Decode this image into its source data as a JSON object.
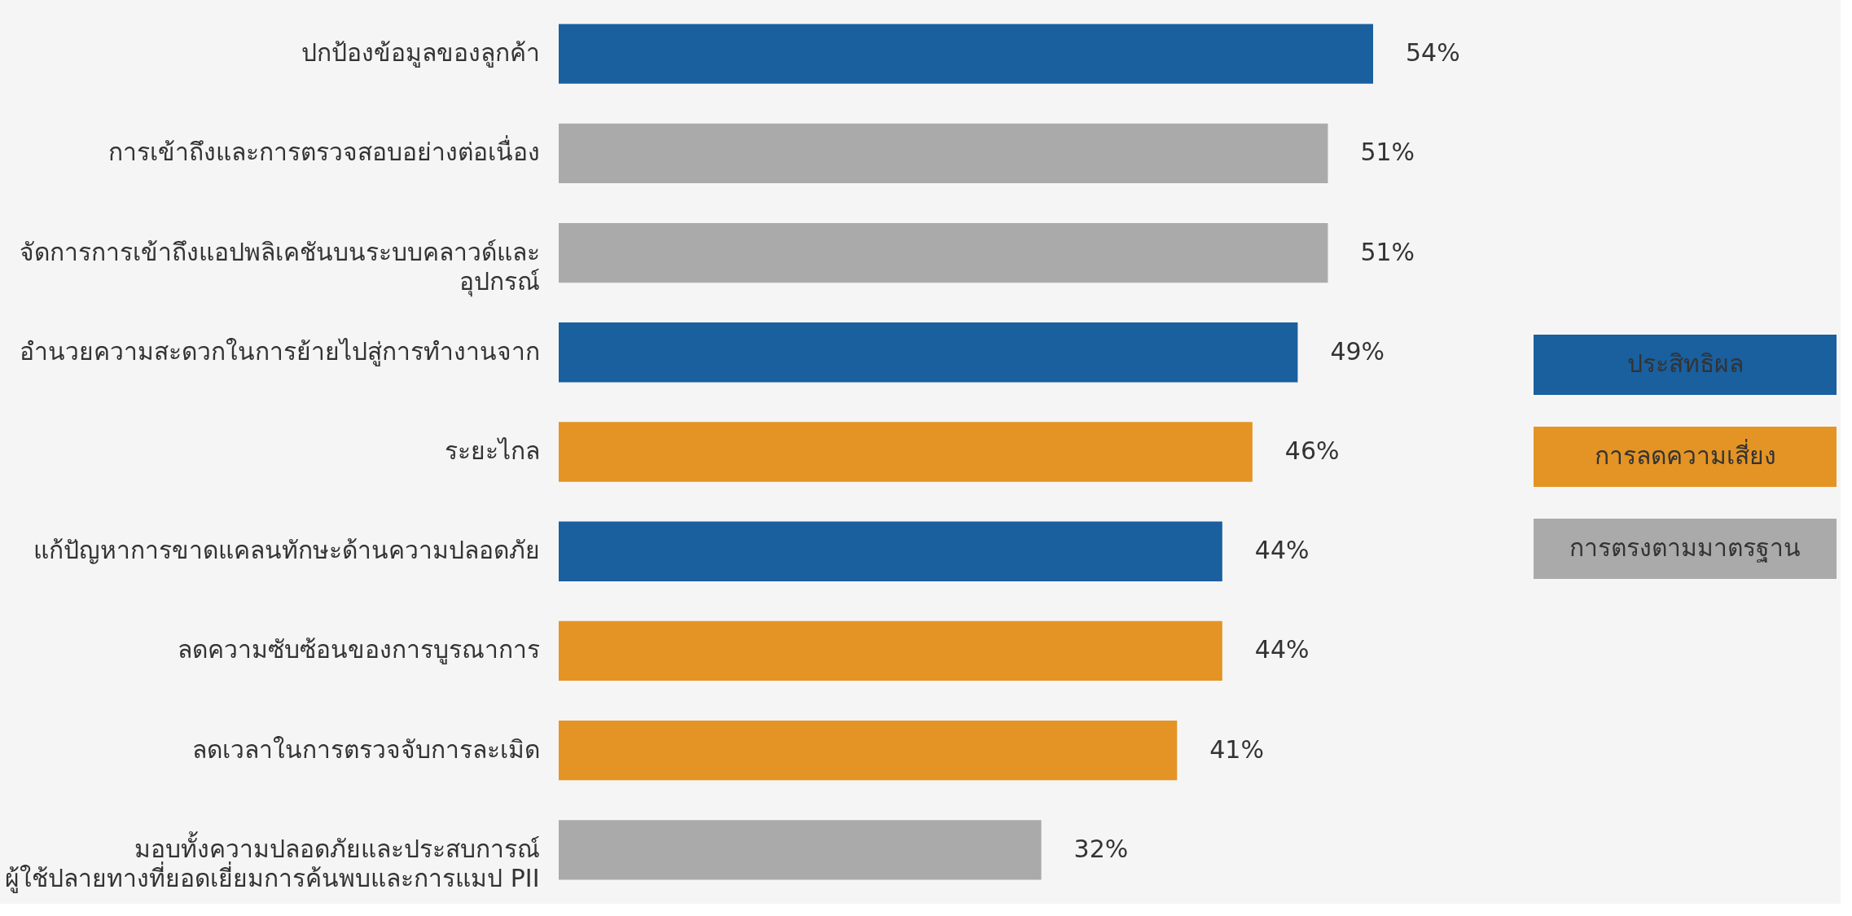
{
  "chart_data": {
    "type": "bar",
    "orientation": "horizontal",
    "legend": "right",
    "categories": [
      "ปกป้องข้อมูลของลูกค้า",
      "การเข้าถึงและการตรวจสอบอย่างต่อเนื่อง",
      "จัดการการเข้าถึงแอปพลิเคชันบนระบบคลาวด์และ\nอุปกรณ์",
      "อำนวยความสะดวกในการย้ายไปสู่การทำงานจาก",
      "ระยะไกล",
      "แก้ปัญหาการขาดแคลนทักษะด้านความปลอดภัย",
      "ลดความซับซ้อนของการบูรณาการ",
      "ลดเวลาในการตรวจจับการละเมิด",
      "มอบทั้งความปลอดภัยและประสบการณ์\nผู้ใช้ปลายทางที่ยอดเยี่ยมการค้นพบและการแมป PII"
    ],
    "series": [
      {
        "name": "ประสิทธิผล",
        "color": "#1a5f9e",
        "values": [
          54,
          null,
          null,
          49,
          null,
          44,
          null,
          null,
          null
        ],
        "value_labels": [
          "54%",
          null,
          null,
          "49%",
          null,
          "44%",
          null,
          null,
          null
        ]
      },
      {
        "name": "การลดความเสี่ยง",
        "color": "#e49425",
        "values": [
          null,
          null,
          null,
          null,
          46,
          null,
          44,
          41,
          null
        ],
        "value_labels": [
          null,
          null,
          null,
          null,
          "46%",
          null,
          "44%",
          "41%",
          null
        ]
      },
      {
        "name": "การตรงตามมาตรฐาน",
        "color": "#aaaaaa",
        "values": [
          null,
          51,
          51,
          null,
          null,
          null,
          null,
          null,
          32
        ],
        "value_labels": [
          null,
          "51%",
          "51%",
          null,
          null,
          null,
          null,
          null,
          "32%"
        ]
      }
    ]
  }
}
